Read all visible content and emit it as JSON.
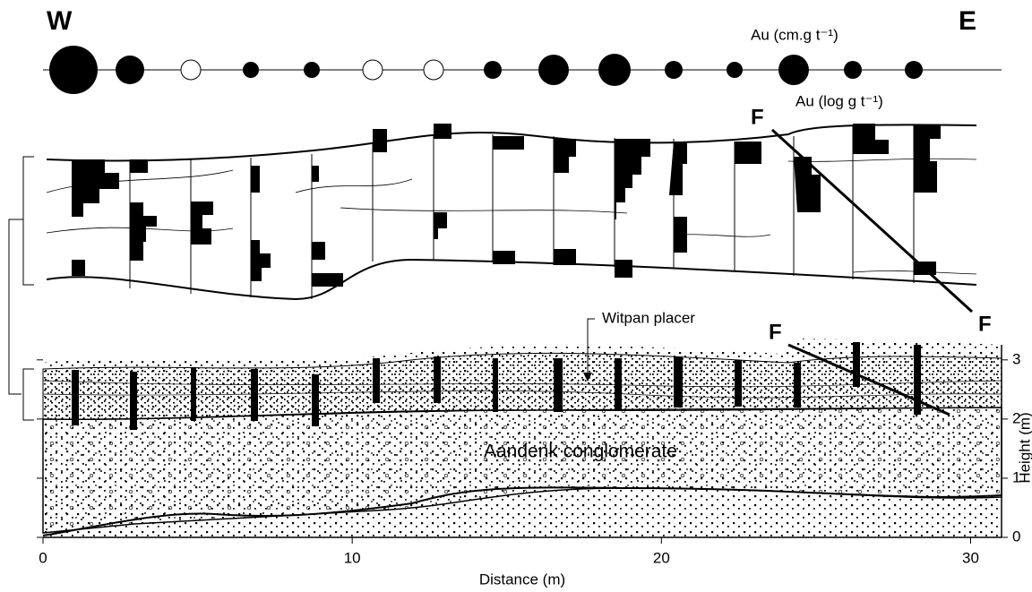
{
  "header": {
    "west": "W",
    "east": "E"
  },
  "labels": {
    "au_cm": "Au (cm.g t⁻¹)",
    "au_log": "Au (log g t⁻¹)",
    "fault_upper": "F",
    "fault_right": "F",
    "fault_lower": "F",
    "witpan": "Witpan placer",
    "aandenk": "Aandenk conglomerate"
  },
  "x_axis": {
    "title": "Distance (m)",
    "ticks": [
      0,
      10,
      20,
      30
    ],
    "lim": [
      0,
      31
    ]
  },
  "y_axis": {
    "title": "Height (m)",
    "ticks": [
      0,
      1,
      2,
      3
    ],
    "lim": [
      0,
      3.3
    ]
  }
}
